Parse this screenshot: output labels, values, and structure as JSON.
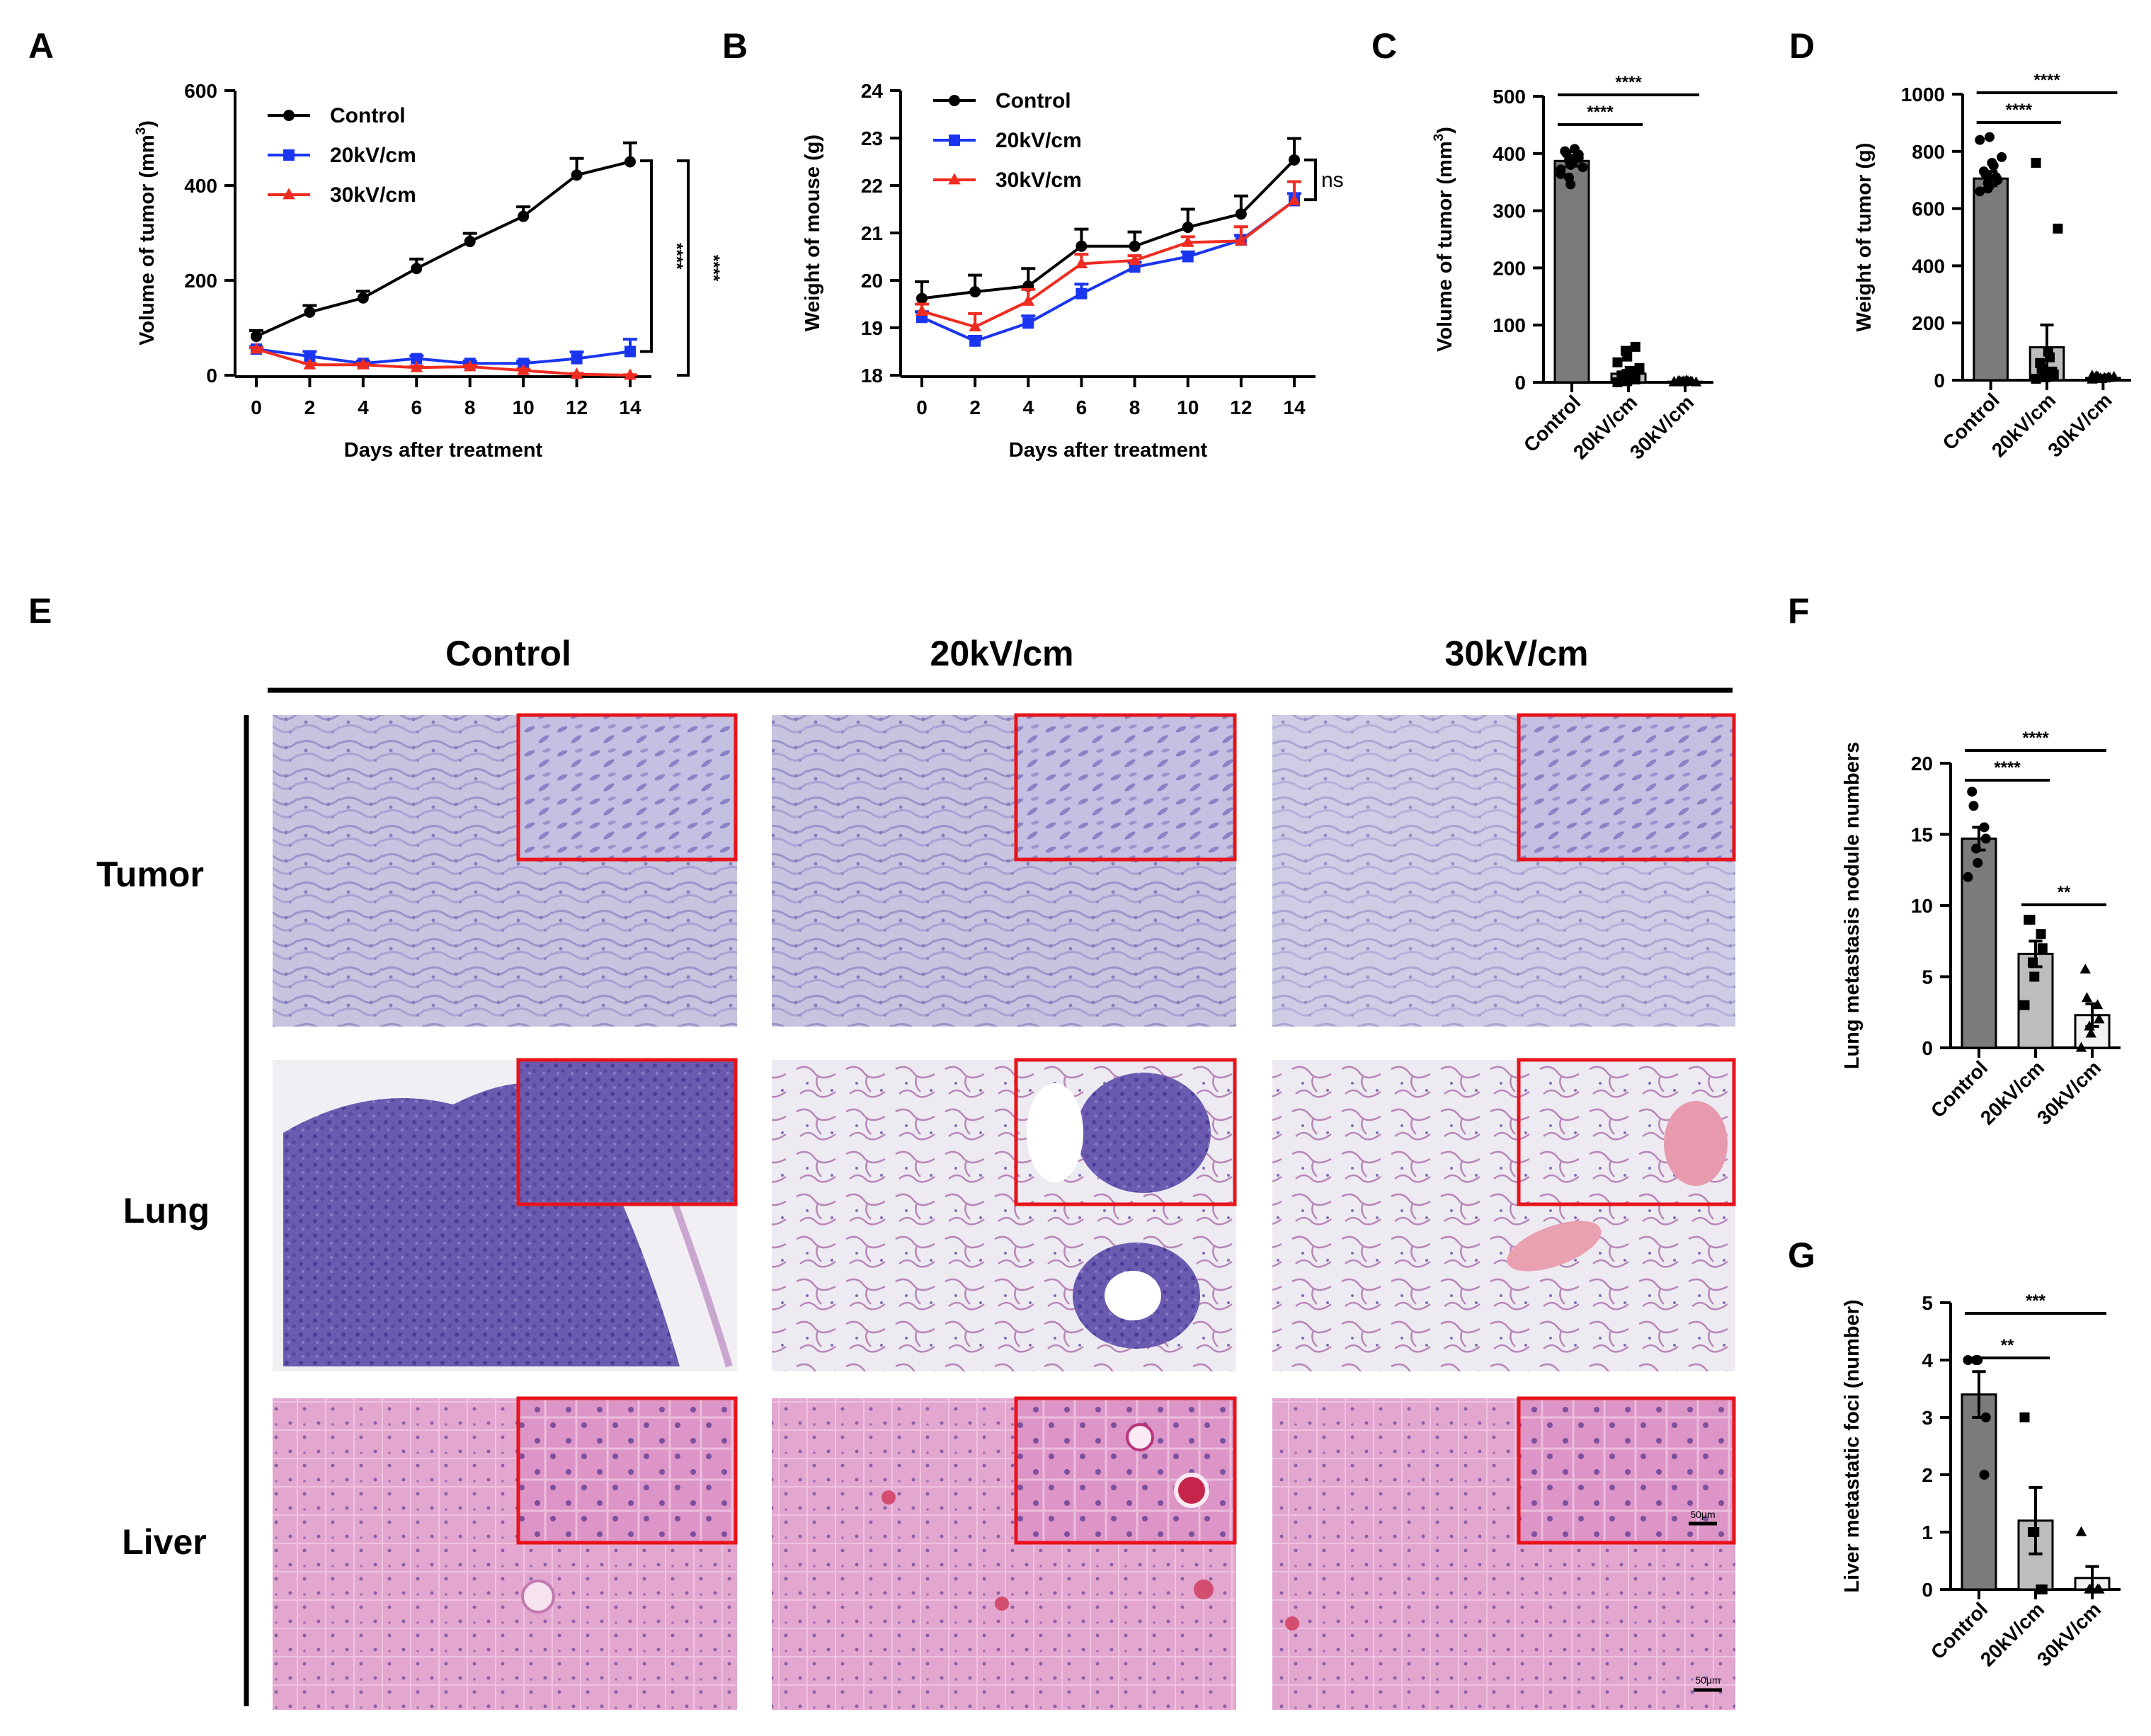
{
  "panels": {
    "A": "A",
    "B": "B",
    "C": "C",
    "D": "D",
    "E": "E",
    "F": "F",
    "G": "G"
  },
  "colors": {
    "control": "#000000",
    "kv20": "#1a35f0",
    "kv30": "#ef2c21",
    "bar_dark": "#7b7b7b",
    "bar_light": "#bdbdbd",
    "bar_white": "#f2f2f2",
    "inset_border": "#e8131a"
  },
  "histology": {
    "columns": [
      "Control",
      "20kV/cm",
      "30kV/cm"
    ],
    "rows": [
      "Tumor",
      "Lung",
      "Liver"
    ],
    "scale_bar": "50μm"
  },
  "chart_data": [
    {
      "id": "A",
      "type": "line",
      "xlabel": "Days after treatment",
      "ylabel": "Volume of tumor (mm³)",
      "ylabel_main": "Volume of tumor (mm",
      "ylabel_sup": "3",
      "ylabel_close": ")",
      "x": [
        0,
        2,
        4,
        6,
        8,
        10,
        12,
        14
      ],
      "xticks": [
        "0",
        "2",
        "4",
        "6",
        "8",
        "10",
        "12",
        "14"
      ],
      "ylim": [
        0,
        600
      ],
      "yticks": [
        "0",
        "200",
        "400",
        "600"
      ],
      "legend": "top-left",
      "series": [
        {
          "name": "Control",
          "marker": "circle",
          "values": [
            82,
            133,
            163,
            225,
            282,
            335,
            422,
            450
          ],
          "err": [
            12,
            14,
            14,
            20,
            17,
            20,
            35,
            40
          ]
        },
        {
          "name": "20kV/cm",
          "marker": "square",
          "values": [
            55,
            40,
            25,
            35,
            25,
            25,
            35,
            50
          ],
          "err": [
            5,
            10,
            5,
            6,
            5,
            5,
            14,
            26
          ]
        },
        {
          "name": "30kV/cm",
          "marker": "triangle",
          "values": [
            55,
            22,
            22,
            16,
            18,
            10,
            2,
            0
          ],
          "err": [
            3,
            3,
            3,
            3,
            3,
            3,
            2,
            1
          ]
        }
      ],
      "annotations": [
        "****",
        "****"
      ]
    },
    {
      "id": "B",
      "type": "line",
      "xlabel": "Days after treatment",
      "ylabel": "Weight of mouse (g)",
      "x": [
        0,
        2,
        4,
        6,
        8,
        10,
        12,
        14
      ],
      "xticks": [
        "0",
        "2",
        "4",
        "6",
        "8",
        "10",
        "12",
        "14"
      ],
      "ylim": [
        18,
        24
      ],
      "yticks": [
        "18",
        "19",
        "20",
        "21",
        "22",
        "23",
        "24"
      ],
      "legend": "top-left",
      "series": [
        {
          "name": "Control",
          "marker": "circle",
          "values": [
            19.62,
            19.76,
            19.88,
            20.72,
            20.72,
            21.12,
            21.4,
            22.54
          ],
          "err": [
            0.35,
            0.35,
            0.37,
            0.36,
            0.3,
            0.38,
            0.38,
            0.45
          ]
        },
        {
          "name": "20kV/cm",
          "marker": "square",
          "values": [
            19.22,
            18.72,
            19.1,
            19.72,
            20.28,
            20.5,
            20.85,
            21.68
          ],
          "err": [
            0.12,
            0.1,
            0.15,
            0.2,
            0.1,
            0.1,
            0.1,
            0.15
          ]
        },
        {
          "name": "30kV/cm",
          "marker": "triangle",
          "values": [
            19.35,
            19.02,
            19.56,
            20.35,
            20.42,
            20.8,
            20.83,
            21.68
          ],
          "err": [
            0.15,
            0.28,
            0.25,
            0.2,
            0.1,
            0.12,
            0.3,
            0.4
          ]
        }
      ],
      "annotations": [
        "ns"
      ]
    },
    {
      "id": "C",
      "type": "bar",
      "ylabel": "Volume of tumor (mm³)",
      "ylabel_main": "Volume of tumor (mm",
      "ylabel_sup": "3",
      "ylabel_close": ")",
      "categories": [
        "Control",
        "20kV/cm",
        "30kV/cm"
      ],
      "values": [
        387,
        15,
        1
      ],
      "err": [
        9,
        6,
        1
      ],
      "ylim": [
        0,
        500
      ],
      "yticks": [
        "0",
        "100",
        "200",
        "300",
        "400",
        "500"
      ],
      "points": [
        [
          372,
          380,
          388,
          392,
          396,
          400,
          404,
          408,
          384,
          376,
          364,
          346,
          358,
          398
        ],
        [
          0,
          2,
          3,
          5,
          8,
          10,
          12,
          15,
          20,
          25,
          35,
          45,
          55,
          62
        ],
        [
          0,
          0,
          1,
          1,
          1,
          2,
          2,
          2,
          3,
          0,
          1,
          2
        ]
      ],
      "annotations": [
        "****",
        "****"
      ]
    },
    {
      "id": "D",
      "type": "bar",
      "ylabel": "Weight of tumor (g)",
      "categories": [
        "Control",
        "20kV/cm",
        "30kV/cm"
      ],
      "values": [
        705,
        115,
        8
      ],
      "err": [
        25,
        78,
        4
      ],
      "ylim": [
        0,
        1000
      ],
      "yticks": [
        "0",
        "200",
        "400",
        "600",
        "800",
        "1000"
      ],
      "points": [
        [
          660,
          680,
          690,
          700,
          710,
          720,
          730,
          750,
          760,
          780,
          840,
          850,
          670
        ],
        [
          5,
          10,
          15,
          20,
          30,
          40,
          60,
          80,
          100,
          530,
          760
        ],
        [
          2,
          4,
          6,
          8,
          10,
          12,
          14,
          6,
          8,
          12,
          16
        ]
      ],
      "annotations": [
        "****",
        "****"
      ]
    },
    {
      "id": "F",
      "type": "bar",
      "ylabel": "Lung metastasis nodule numbers",
      "categories": [
        "Control",
        "20kV/cm",
        "30kV/cm"
      ],
      "values": [
        14.7,
        6.6,
        2.3
      ],
      "err": [
        0.8,
        0.9,
        0.8
      ],
      "ylim": [
        0,
        20
      ],
      "yticks": [
        "0",
        "5",
        "10",
        "15",
        "20"
      ],
      "points": [
        [
          12,
          13,
          14,
          14.7,
          15.5,
          17,
          18
        ],
        [
          3,
          5,
          6,
          7,
          8,
          9,
          9
        ],
        [
          0,
          1,
          1.5,
          2,
          3,
          3.5,
          5.5
        ]
      ],
      "annotations": [
        "****",
        "****",
        "**"
      ]
    },
    {
      "id": "G",
      "type": "bar",
      "ylabel": "Liver  metastatic  foci (number)",
      "categories": [
        "Control",
        "20kV/cm",
        "30kV/cm"
      ],
      "values": [
        3.4,
        1.2,
        0.2
      ],
      "err": [
        0.4,
        0.58,
        0.2
      ],
      "ylim": [
        0,
        5
      ],
      "yticks": [
        "0",
        "1",
        "2",
        "3",
        "4",
        "5"
      ],
      "points": [
        [
          4,
          4,
          4,
          3,
          2
        ],
        [
          3,
          1,
          1,
          0,
          0
        ],
        [
          1,
          0,
          0,
          0,
          0
        ]
      ],
      "annotations": [
        "**",
        "***"
      ]
    }
  ]
}
